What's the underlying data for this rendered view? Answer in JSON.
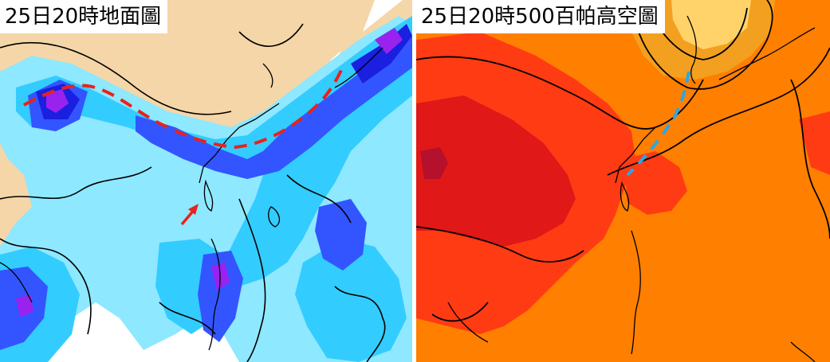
{
  "left_panel": {
    "title": "25日20時地面圖",
    "layers": [
      "surface-pressure-contours",
      "precipitation-shading",
      "front-line-dashed",
      "arrow-marker"
    ],
    "colors": {
      "land": "#f5d6a8",
      "ocean": "#ffffff",
      "light_precip": "#8ee8ff",
      "moderate_precip": "#33ccff",
      "heavy_precip": "#3355ff",
      "very_heavy_precip": "#1a1fe0",
      "extreme_precip": "#9a22ee",
      "front_line": "#e8221c",
      "arrow": "#e8221c",
      "contours": "#000000"
    }
  },
  "right_panel": {
    "title": "25日20時500百帕高空圖",
    "layers": [
      "geopotential-height-contours",
      "temperature-shading",
      "trough-line-dashed"
    ],
    "colors": {
      "warm": "#ff7f00",
      "hot": "#ff3b14",
      "hottest": "#e01818",
      "peak": "#b5102c",
      "cool": "#f3a020",
      "cold": "#ffd36a",
      "trough_line": "#2aa7e6",
      "contours": "#000000"
    }
  }
}
